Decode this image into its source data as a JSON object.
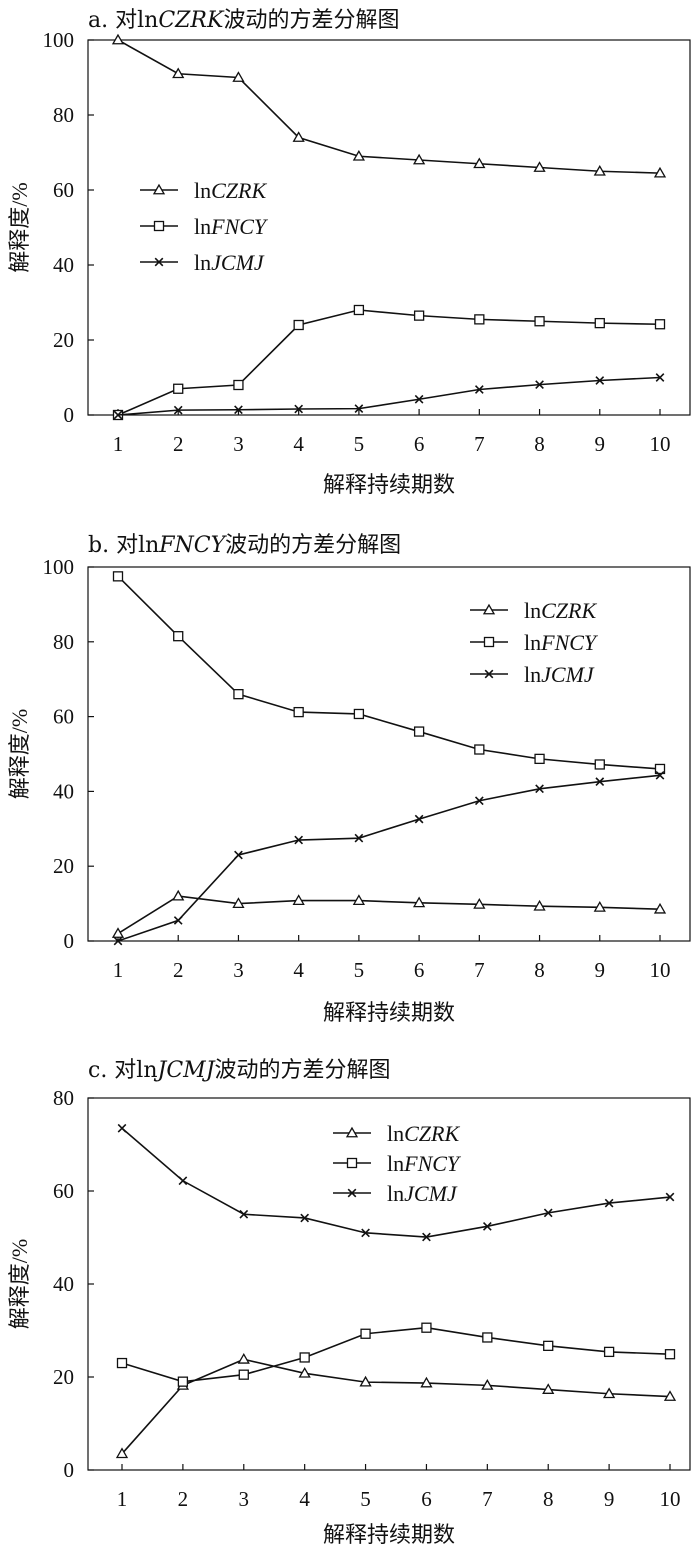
{
  "chart_data": [
    {
      "type": "line",
      "title": {
        "prefix": "a. 对ln",
        "var": "CZRK",
        "suffix": "波动的方差分解图"
      },
      "xlabel": "解释持续期数",
      "ylabel": "解释度/%",
      "x": [
        1,
        2,
        3,
        4,
        5,
        6,
        7,
        8,
        9,
        10
      ],
      "ylim": [
        0,
        100
      ],
      "yticks": [
        0,
        20,
        40,
        60,
        80,
        100
      ],
      "legend_position": "middle-left",
      "series": [
        {
          "name": "CZRK",
          "marker": "triangle",
          "values": [
            100,
            91,
            90,
            74,
            69,
            68,
            67,
            66,
            65,
            64.5
          ]
        },
        {
          "name": "FNCY",
          "marker": "square",
          "values": [
            0,
            7,
            8,
            24,
            28,
            26.5,
            25.5,
            25,
            24.5,
            24.2
          ]
        },
        {
          "name": "JCMJ",
          "marker": "x",
          "values": [
            0,
            1.3,
            1.4,
            1.6,
            1.7,
            4.2,
            6.8,
            8.1,
            9.2,
            10
          ]
        }
      ]
    },
    {
      "type": "line",
      "title": {
        "prefix": "b. 对ln",
        "var": "FNCY",
        "suffix": "波动的方差分解图"
      },
      "xlabel": "解释持续期数",
      "ylabel": "解释度/%",
      "x": [
        1,
        2,
        3,
        4,
        5,
        6,
        7,
        8,
        9,
        10
      ],
      "ylim": [
        0,
        100
      ],
      "yticks": [
        0,
        20,
        40,
        60,
        80,
        100
      ],
      "legend_position": "top-right",
      "series": [
        {
          "name": "CZRK",
          "marker": "triangle",
          "values": [
            2,
            12,
            10,
            10.8,
            10.8,
            10.2,
            9.8,
            9.3,
            9,
            8.5
          ]
        },
        {
          "name": "FNCY",
          "marker": "square",
          "values": [
            97.5,
            81.5,
            66,
            61.2,
            60.7,
            56,
            51.2,
            48.7,
            47.2,
            46
          ]
        },
        {
          "name": "JCMJ",
          "marker": "x",
          "values": [
            0,
            5.5,
            23,
            27,
            27.5,
            32.6,
            37.5,
            40.7,
            42.6,
            44.3
          ]
        }
      ]
    },
    {
      "type": "line",
      "title": {
        "prefix": "c. 对ln",
        "var": "JCMJ",
        "suffix": "波动的方差分解图"
      },
      "xlabel": "解释持续期数",
      "ylabel": "解释度/%",
      "x": [
        1,
        2,
        3,
        4,
        5,
        6,
        7,
        8,
        9,
        10
      ],
      "ylim": [
        0,
        80
      ],
      "yticks": [
        0,
        20,
        40,
        60,
        80
      ],
      "legend_position": "top-center",
      "series": [
        {
          "name": "CZRK",
          "marker": "triangle",
          "values": [
            3.5,
            18.2,
            23.8,
            20.8,
            18.9,
            18.7,
            18.2,
            17.3,
            16.4,
            15.8
          ]
        },
        {
          "name": "FNCY",
          "marker": "square",
          "values": [
            23,
            19,
            20.5,
            24.2,
            29.3,
            30.6,
            28.5,
            26.7,
            25.4,
            24.9
          ]
        },
        {
          "name": "JCMJ",
          "marker": "x",
          "values": [
            73.5,
            62.2,
            55,
            54.2,
            51,
            50.1,
            52.4,
            55.3,
            57.4,
            58.7
          ]
        }
      ]
    }
  ]
}
